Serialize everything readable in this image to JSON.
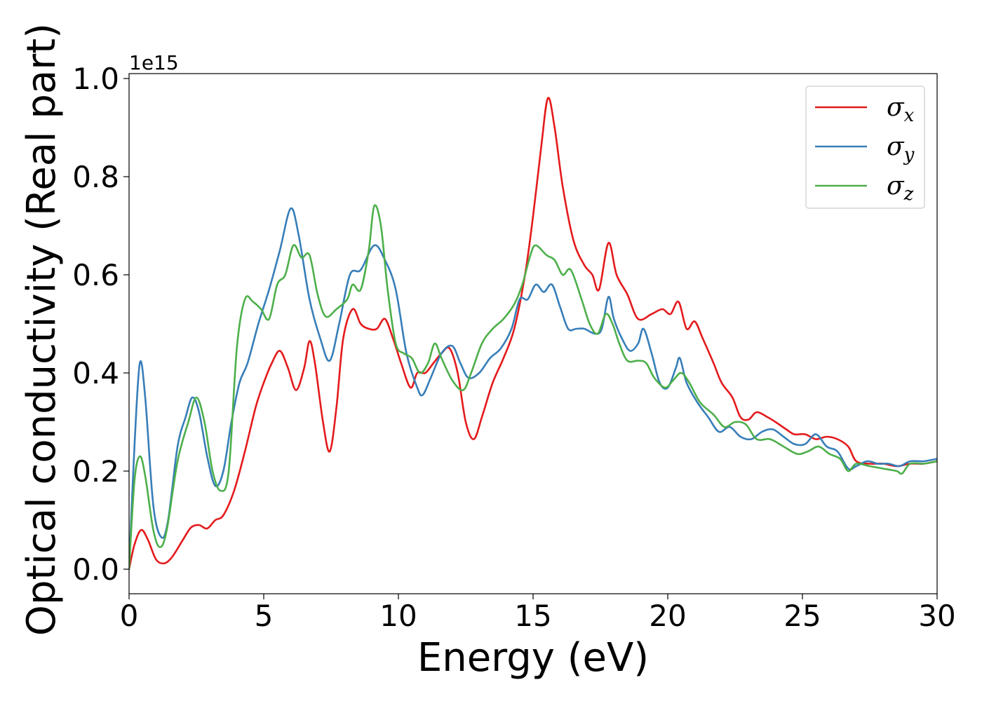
{
  "chart_data": {
    "type": "line",
    "title": "",
    "xlabel": "Energy (eV)",
    "ylabel": "Optical conductivity (Real part)",
    "y_offset_text": "1e15",
    "xlim": [
      0,
      30
    ],
    "ylim": [
      -0.05,
      1.01
    ],
    "xticks": [
      0,
      5,
      10,
      15,
      20,
      25,
      30
    ],
    "xtick_labels": [
      "0",
      "5",
      "10",
      "15",
      "20",
      "25",
      "30"
    ],
    "yticks": [
      0.0,
      0.2,
      0.4,
      0.6,
      0.8,
      1.0
    ],
    "ytick_labels": [
      "0.0",
      "0.2",
      "0.4",
      "0.6",
      "0.8",
      "1.0"
    ],
    "grid": false,
    "legend_position": "top-right",
    "series": [
      {
        "name": "σx",
        "symbol": "σ",
        "subscript": "x",
        "color": "#e41a1c",
        "points": [
          [
            0,
            0.0
          ],
          [
            0.2,
            0.05
          ],
          [
            0.45,
            0.08
          ],
          [
            0.7,
            0.06
          ],
          [
            1.0,
            0.02
          ],
          [
            1.3,
            0.012
          ],
          [
            1.6,
            0.025
          ],
          [
            2.0,
            0.06
          ],
          [
            2.3,
            0.085
          ],
          [
            2.6,
            0.09
          ],
          [
            2.9,
            0.083
          ],
          [
            3.2,
            0.1
          ],
          [
            3.5,
            0.11
          ],
          [
            3.9,
            0.16
          ],
          [
            4.3,
            0.24
          ],
          [
            4.7,
            0.33
          ],
          [
            5.0,
            0.38
          ],
          [
            5.3,
            0.42
          ],
          [
            5.6,
            0.445
          ],
          [
            5.9,
            0.41
          ],
          [
            6.2,
            0.365
          ],
          [
            6.5,
            0.41
          ],
          [
            6.7,
            0.465
          ],
          [
            6.9,
            0.42
          ],
          [
            7.2,
            0.3
          ],
          [
            7.45,
            0.24
          ],
          [
            7.7,
            0.33
          ],
          [
            7.95,
            0.47
          ],
          [
            8.3,
            0.53
          ],
          [
            8.6,
            0.5
          ],
          [
            8.9,
            0.49
          ],
          [
            9.2,
            0.49
          ],
          [
            9.5,
            0.51
          ],
          [
            9.8,
            0.47
          ],
          [
            10.1,
            0.42
          ],
          [
            10.45,
            0.37
          ],
          [
            10.7,
            0.4
          ],
          [
            11.0,
            0.4
          ],
          [
            11.3,
            0.42
          ],
          [
            11.6,
            0.44
          ],
          [
            11.9,
            0.45
          ],
          [
            12.2,
            0.4
          ],
          [
            12.5,
            0.3
          ],
          [
            12.8,
            0.265
          ],
          [
            13.1,
            0.31
          ],
          [
            13.5,
            0.38
          ],
          [
            13.9,
            0.43
          ],
          [
            14.3,
            0.49
          ],
          [
            14.7,
            0.6
          ],
          [
            15.0,
            0.72
          ],
          [
            15.3,
            0.86
          ],
          [
            15.55,
            0.96
          ],
          [
            15.8,
            0.9
          ],
          [
            16.1,
            0.78
          ],
          [
            16.5,
            0.67
          ],
          [
            16.9,
            0.62
          ],
          [
            17.2,
            0.6
          ],
          [
            17.45,
            0.57
          ],
          [
            17.8,
            0.665
          ],
          [
            18.1,
            0.6
          ],
          [
            18.5,
            0.56
          ],
          [
            18.9,
            0.51
          ],
          [
            19.4,
            0.52
          ],
          [
            19.8,
            0.53
          ],
          [
            20.1,
            0.52
          ],
          [
            20.4,
            0.545
          ],
          [
            20.7,
            0.49
          ],
          [
            21.0,
            0.505
          ],
          [
            21.3,
            0.47
          ],
          [
            21.7,
            0.42
          ],
          [
            22.0,
            0.38
          ],
          [
            22.4,
            0.35
          ],
          [
            22.7,
            0.31
          ],
          [
            23.0,
            0.305
          ],
          [
            23.3,
            0.32
          ],
          [
            23.7,
            0.31
          ],
          [
            24.0,
            0.3
          ],
          [
            24.4,
            0.285
          ],
          [
            24.7,
            0.275
          ],
          [
            25.1,
            0.275
          ],
          [
            25.5,
            0.265
          ],
          [
            25.9,
            0.27
          ],
          [
            26.3,
            0.265
          ],
          [
            26.7,
            0.25
          ],
          [
            27.0,
            0.22
          ],
          [
            27.5,
            0.215
          ],
          [
            28.0,
            0.215
          ],
          [
            28.5,
            0.21
          ],
          [
            29.0,
            0.215
          ],
          [
            29.5,
            0.215
          ],
          [
            30.0,
            0.22
          ]
        ]
      },
      {
        "name": "σy",
        "symbol": "σ",
        "subscript": "y",
        "color": "#377eb8",
        "points": [
          [
            0,
            0.0
          ],
          [
            0.2,
            0.25
          ],
          [
            0.4,
            0.42
          ],
          [
            0.6,
            0.35
          ],
          [
            0.9,
            0.13
          ],
          [
            1.2,
            0.065
          ],
          [
            1.45,
            0.1
          ],
          [
            1.8,
            0.25
          ],
          [
            2.1,
            0.31
          ],
          [
            2.35,
            0.35
          ],
          [
            2.6,
            0.32
          ],
          [
            2.9,
            0.23
          ],
          [
            3.2,
            0.17
          ],
          [
            3.5,
            0.2
          ],
          [
            3.8,
            0.3
          ],
          [
            4.1,
            0.38
          ],
          [
            4.4,
            0.42
          ],
          [
            4.8,
            0.5
          ],
          [
            5.2,
            0.57
          ],
          [
            5.6,
            0.65
          ],
          [
            6.0,
            0.735
          ],
          [
            6.3,
            0.68
          ],
          [
            6.7,
            0.55
          ],
          [
            7.1,
            0.47
          ],
          [
            7.45,
            0.425
          ],
          [
            7.8,
            0.5
          ],
          [
            8.2,
            0.6
          ],
          [
            8.6,
            0.61
          ],
          [
            9.1,
            0.66
          ],
          [
            9.5,
            0.63
          ],
          [
            9.9,
            0.57
          ],
          [
            10.3,
            0.44
          ],
          [
            10.7,
            0.37
          ],
          [
            10.9,
            0.355
          ],
          [
            11.2,
            0.39
          ],
          [
            11.6,
            0.44
          ],
          [
            12.0,
            0.455
          ],
          [
            12.3,
            0.42
          ],
          [
            12.6,
            0.39
          ],
          [
            13.0,
            0.4
          ],
          [
            13.4,
            0.43
          ],
          [
            13.8,
            0.45
          ],
          [
            14.2,
            0.49
          ],
          [
            14.5,
            0.55
          ],
          [
            14.8,
            0.55
          ],
          [
            15.1,
            0.58
          ],
          [
            15.4,
            0.565
          ],
          [
            15.7,
            0.58
          ],
          [
            16.0,
            0.535
          ],
          [
            16.3,
            0.49
          ],
          [
            16.6,
            0.49
          ],
          [
            16.9,
            0.49
          ],
          [
            17.3,
            0.48
          ],
          [
            17.55,
            0.49
          ],
          [
            17.8,
            0.555
          ],
          [
            18.0,
            0.51
          ],
          [
            18.3,
            0.47
          ],
          [
            18.6,
            0.445
          ],
          [
            18.9,
            0.46
          ],
          [
            19.1,
            0.49
          ],
          [
            19.4,
            0.44
          ],
          [
            19.7,
            0.38
          ],
          [
            20.0,
            0.37
          ],
          [
            20.3,
            0.41
          ],
          [
            20.45,
            0.43
          ],
          [
            20.7,
            0.38
          ],
          [
            21.1,
            0.34
          ],
          [
            21.5,
            0.31
          ],
          [
            21.9,
            0.28
          ],
          [
            22.3,
            0.29
          ],
          [
            22.7,
            0.27
          ],
          [
            23.1,
            0.265
          ],
          [
            23.5,
            0.28
          ],
          [
            23.9,
            0.285
          ],
          [
            24.3,
            0.27
          ],
          [
            24.7,
            0.255
          ],
          [
            25.1,
            0.255
          ],
          [
            25.5,
            0.275
          ],
          [
            25.9,
            0.25
          ],
          [
            26.3,
            0.24
          ],
          [
            26.7,
            0.205
          ],
          [
            27.0,
            0.21
          ],
          [
            27.4,
            0.22
          ],
          [
            27.8,
            0.215
          ],
          [
            28.2,
            0.215
          ],
          [
            28.6,
            0.21
          ],
          [
            29.0,
            0.22
          ],
          [
            29.5,
            0.22
          ],
          [
            30.0,
            0.225
          ]
        ]
      },
      {
        "name": "σz",
        "symbol": "σ",
        "subscript": "z",
        "color": "#4daf4a",
        "points": [
          [
            0,
            0.0
          ],
          [
            0.2,
            0.18
          ],
          [
            0.4,
            0.23
          ],
          [
            0.6,
            0.19
          ],
          [
            0.9,
            0.08
          ],
          [
            1.15,
            0.045
          ],
          [
            1.4,
            0.08
          ],
          [
            1.8,
            0.22
          ],
          [
            2.2,
            0.3
          ],
          [
            2.5,
            0.35
          ],
          [
            2.8,
            0.3
          ],
          [
            3.1,
            0.2
          ],
          [
            3.4,
            0.16
          ],
          [
            3.7,
            0.2
          ],
          [
            4.0,
            0.45
          ],
          [
            4.3,
            0.55
          ],
          [
            4.6,
            0.545
          ],
          [
            4.9,
            0.53
          ],
          [
            5.2,
            0.51
          ],
          [
            5.5,
            0.58
          ],
          [
            5.8,
            0.6
          ],
          [
            6.1,
            0.66
          ],
          [
            6.4,
            0.635
          ],
          [
            6.7,
            0.64
          ],
          [
            7.0,
            0.56
          ],
          [
            7.3,
            0.515
          ],
          [
            7.7,
            0.53
          ],
          [
            8.1,
            0.55
          ],
          [
            8.3,
            0.58
          ],
          [
            8.6,
            0.57
          ],
          [
            8.9,
            0.65
          ],
          [
            9.1,
            0.74
          ],
          [
            9.35,
            0.7
          ],
          [
            9.6,
            0.57
          ],
          [
            9.9,
            0.46
          ],
          [
            10.2,
            0.44
          ],
          [
            10.5,
            0.43
          ],
          [
            10.8,
            0.4
          ],
          [
            11.1,
            0.42
          ],
          [
            11.35,
            0.46
          ],
          [
            11.6,
            0.43
          ],
          [
            12.0,
            0.385
          ],
          [
            12.4,
            0.365
          ],
          [
            12.7,
            0.4
          ],
          [
            13.1,
            0.46
          ],
          [
            13.5,
            0.49
          ],
          [
            13.9,
            0.51
          ],
          [
            14.3,
            0.54
          ],
          [
            14.6,
            0.58
          ],
          [
            14.9,
            0.64
          ],
          [
            15.1,
            0.66
          ],
          [
            15.5,
            0.64
          ],
          [
            15.8,
            0.63
          ],
          [
            16.1,
            0.6
          ],
          [
            16.4,
            0.61
          ],
          [
            16.8,
            0.55
          ],
          [
            17.1,
            0.5
          ],
          [
            17.4,
            0.48
          ],
          [
            17.7,
            0.52
          ],
          [
            17.95,
            0.5
          ],
          [
            18.2,
            0.46
          ],
          [
            18.5,
            0.425
          ],
          [
            18.9,
            0.425
          ],
          [
            19.2,
            0.42
          ],
          [
            19.5,
            0.39
          ],
          [
            19.9,
            0.37
          ],
          [
            20.2,
            0.385
          ],
          [
            20.5,
            0.4
          ],
          [
            20.8,
            0.38
          ],
          [
            21.2,
            0.34
          ],
          [
            21.7,
            0.315
          ],
          [
            22.1,
            0.29
          ],
          [
            22.5,
            0.3
          ],
          [
            22.9,
            0.295
          ],
          [
            23.3,
            0.265
          ],
          [
            23.8,
            0.265
          ],
          [
            24.3,
            0.25
          ],
          [
            24.8,
            0.235
          ],
          [
            25.2,
            0.24
          ],
          [
            25.6,
            0.25
          ],
          [
            26.0,
            0.235
          ],
          [
            26.4,
            0.225
          ],
          [
            26.7,
            0.2
          ],
          [
            27.0,
            0.215
          ],
          [
            27.5,
            0.21
          ],
          [
            28.0,
            0.205
          ],
          [
            28.5,
            0.2
          ],
          [
            28.7,
            0.195
          ],
          [
            29.0,
            0.215
          ],
          [
            29.5,
            0.215
          ],
          [
            30.0,
            0.22
          ]
        ]
      }
    ]
  }
}
